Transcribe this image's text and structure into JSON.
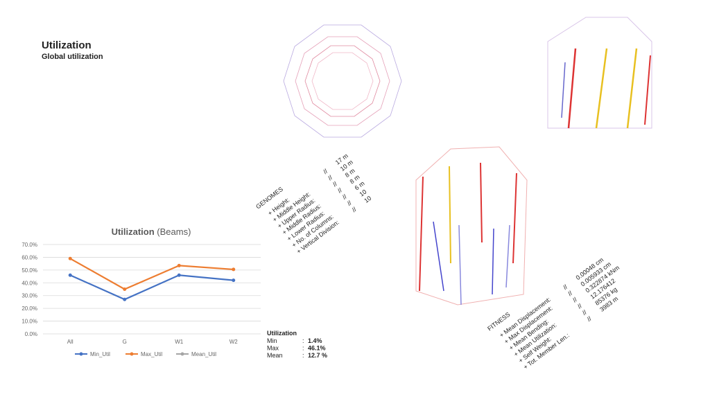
{
  "header": {
    "title": "Utilization",
    "subtitle": "Global utilization"
  },
  "chart_data": {
    "type": "line",
    "title": "Utilization",
    "subtitle": "(Beams)",
    "categories": [
      "All",
      "G",
      "W1",
      "W2"
    ],
    "series": [
      {
        "name": "Min_Util",
        "color": "#4472c4",
        "values": [
          46,
          27,
          46,
          42
        ]
      },
      {
        "name": "Max_Util",
        "color": "#ed7d31",
        "values": [
          59,
          35,
          53.5,
          50.5
        ]
      },
      {
        "name": "Mean_Util",
        "color": "#a5a5a5",
        "values": [
          null,
          null,
          null,
          null
        ]
      }
    ],
    "ylim": [
      0,
      70
    ],
    "yticks": [
      {
        "value": 0,
        "label": "0.0%"
      },
      {
        "value": 10,
        "label": "10.0%"
      },
      {
        "value": 20,
        "label": "20.0%"
      },
      {
        "value": 30,
        "label": "30.0%"
      },
      {
        "value": 40,
        "label": "40.0%"
      },
      {
        "value": 50,
        "label": "50.0%"
      },
      {
        "value": 60,
        "label": "60.0%"
      },
      {
        "value": 70,
        "label": "70.0%"
      }
    ],
    "grid": true,
    "legend": "bottom"
  },
  "summary": {
    "title": "Utilization",
    "separator": ":",
    "rows": [
      {
        "label": "Min",
        "value": "1.4%"
      },
      {
        "label": "Max",
        "value": "46.1%"
      },
      {
        "label": "Mean",
        "value": "12.7 %"
      }
    ]
  },
  "genomes": {
    "title": "GENOMES",
    "separator": "//",
    "rows": [
      {
        "label": "+ Height:",
        "value": "17 m"
      },
      {
        "label": "+ Middle Height:",
        "value": "10 m"
      },
      {
        "label": "+ Upper Radius:",
        "value": "8 m"
      },
      {
        "label": "+ Middle Radius:",
        "value": "8 m"
      },
      {
        "label": "+ Lower Radius:",
        "value": "6 m"
      },
      {
        "label": "+ No. of Columns:",
        "value": "10"
      },
      {
        "label": "+ Vertical Division:",
        "value": "10"
      }
    ]
  },
  "fitness": {
    "title": "FITNESS",
    "separator": "//",
    "rows": [
      {
        "label": "+ Mean Displacement:",
        "value": "0.00048 cm"
      },
      {
        "label": "+ Max Displacement:",
        "value": "0.005933 cm"
      },
      {
        "label": "+ Mean Bending:",
        "value": "0.322874 kNm"
      },
      {
        "label": "+ Mean Utilization:",
        "value": "12.176412"
      },
      {
        "label": "+ Self Weight:",
        "value": "85376 kg"
      },
      {
        "label": "+ Tot. Member Len.:",
        "value": "3983 m"
      }
    ]
  }
}
